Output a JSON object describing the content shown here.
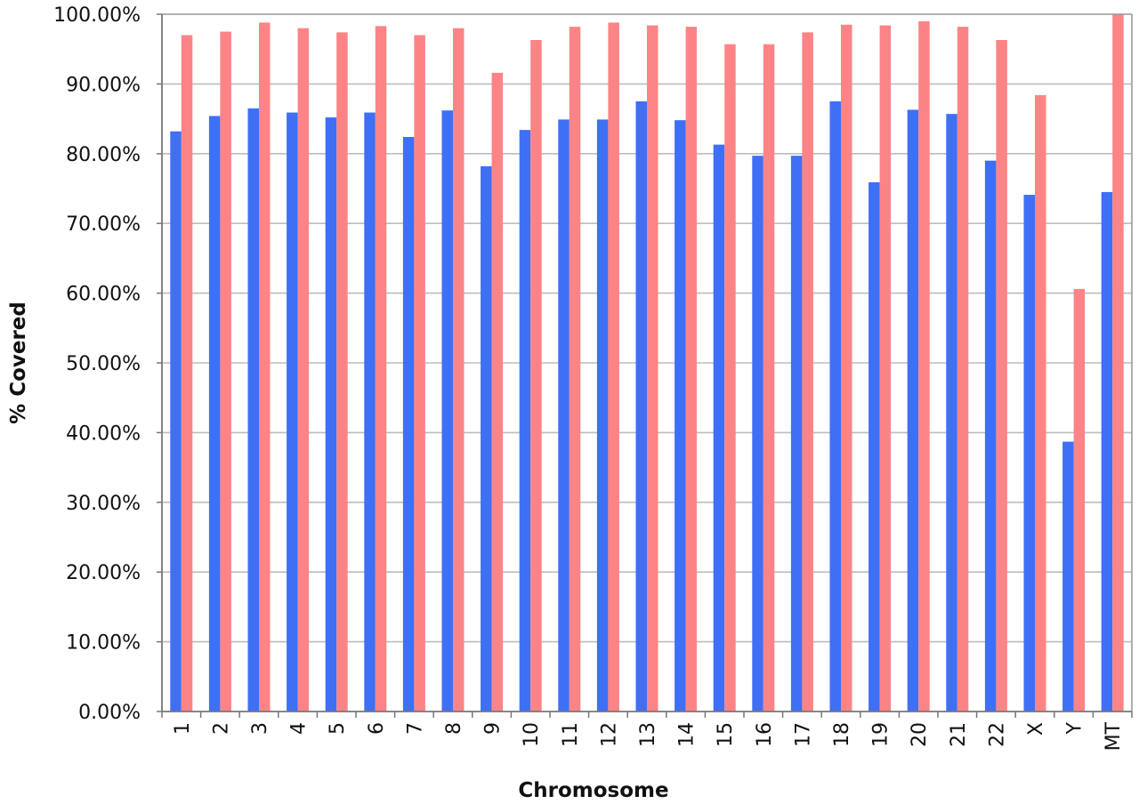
{
  "chart_data": {
    "type": "bar",
    "title": "",
    "xlabel": "Chromosome",
    "ylabel": "% Covered",
    "ylim": [
      0,
      100
    ],
    "ytick_step": 10,
    "ytick_format": "percent_2dp",
    "grid": true,
    "legend": "none",
    "categories": [
      "1",
      "2",
      "3",
      "4",
      "5",
      "6",
      "7",
      "8",
      "9",
      "10",
      "11",
      "12",
      "13",
      "14",
      "15",
      "16",
      "17",
      "18",
      "19",
      "20",
      "21",
      "22",
      "X",
      "Y",
      "MT"
    ],
    "series": [
      {
        "color": "#3f6ff5",
        "values": [
          83.2,
          85.4,
          86.5,
          85.9,
          85.2,
          85.9,
          82.4,
          86.2,
          78.2,
          83.4,
          84.9,
          84.9,
          87.5,
          84.8,
          81.3,
          79.7,
          79.7,
          87.5,
          75.9,
          86.3,
          85.7,
          79.0,
          74.1,
          38.7,
          74.5
        ]
      },
      {
        "color": "#fc8486",
        "values": [
          97.0,
          97.5,
          98.8,
          98.0,
          97.4,
          98.3,
          97.0,
          98.0,
          91.6,
          96.3,
          98.2,
          98.8,
          98.4,
          98.2,
          95.7,
          95.7,
          97.4,
          98.5,
          98.4,
          99.0,
          98.2,
          96.3,
          88.4,
          60.6,
          100.0
        ]
      }
    ]
  },
  "colors": {
    "grid": "#bdbdbd",
    "axis": "#777777",
    "frame": "#999999"
  }
}
